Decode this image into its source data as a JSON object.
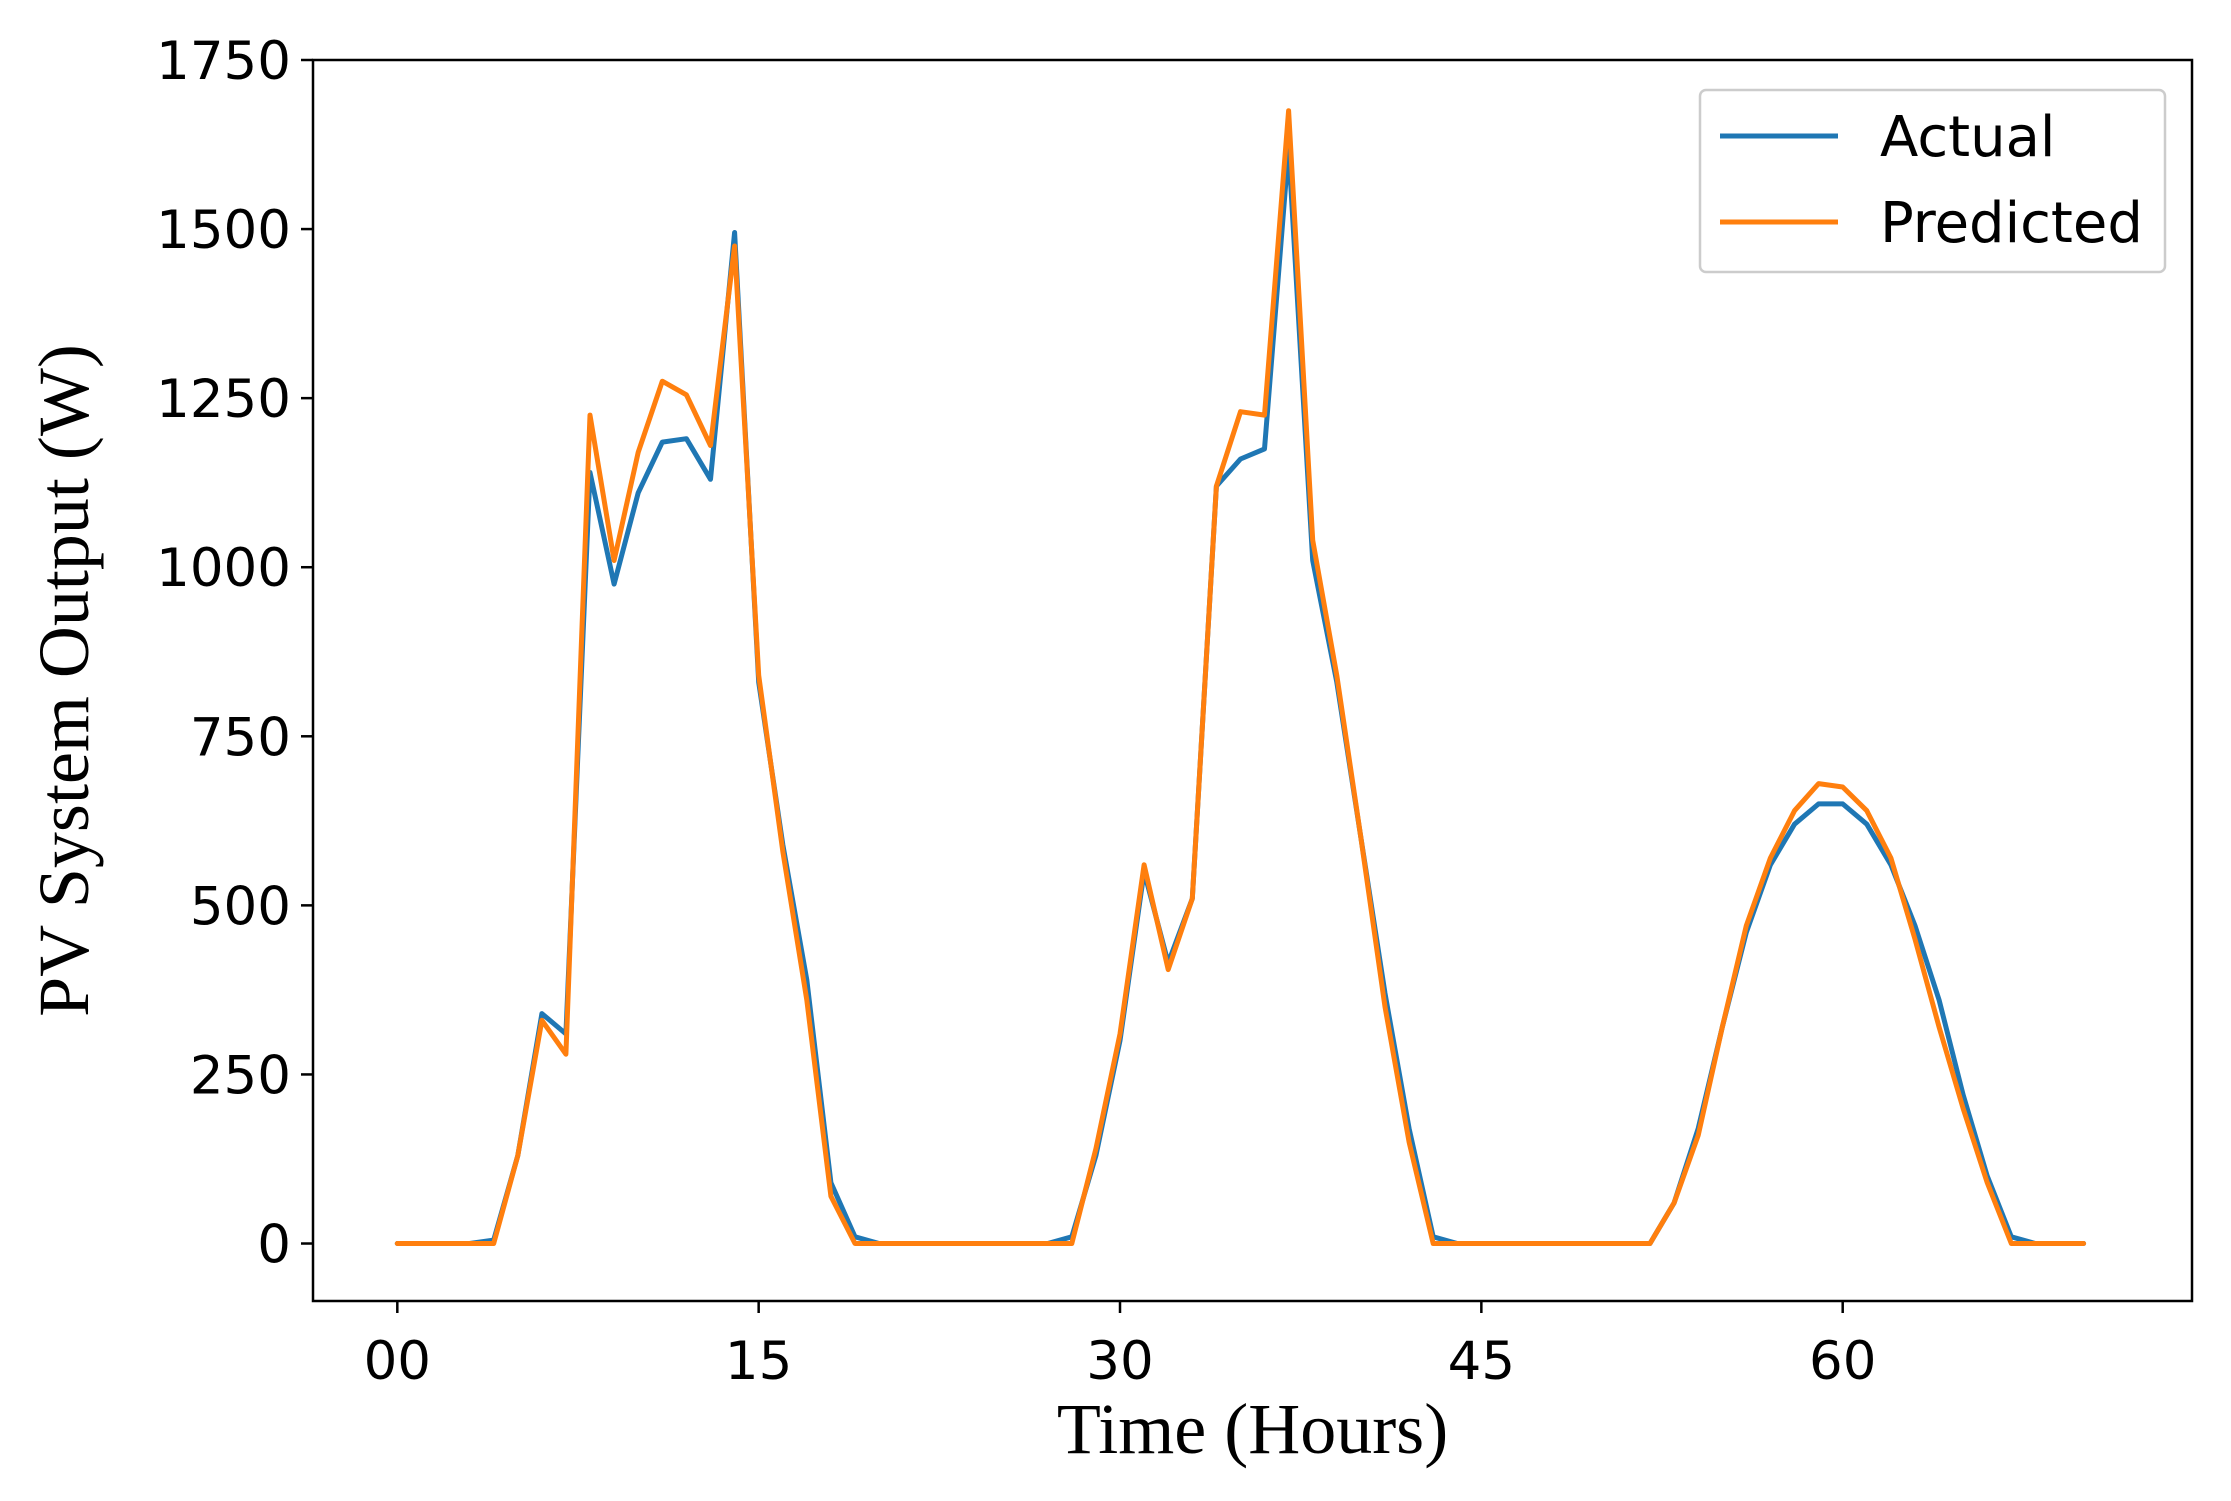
{
  "chart_data": {
    "type": "line",
    "title": "",
    "xlabel": "Time (Hours)",
    "ylabel": "PV System Output (W)",
    "xlim": [
      -3.5,
      74.5
    ],
    "ylim": [
      -85,
      1750
    ],
    "xticks": [
      0,
      15,
      30,
      45,
      60
    ],
    "xtick_labels": [
      "00",
      "15",
      "30",
      "45",
      "60"
    ],
    "yticks": [
      0,
      250,
      500,
      750,
      1000,
      1250,
      1500,
      1750
    ],
    "ytick_labels": [
      "0",
      "250",
      "500",
      "750",
      "1000",
      "1250",
      "1500",
      "1750"
    ],
    "grid": false,
    "legend_position": "top-right",
    "x": [
      0,
      1,
      2,
      3,
      4,
      5,
      6,
      7,
      8,
      9,
      10,
      11,
      12,
      13,
      14,
      15,
      16,
      17,
      18,
      19,
      20,
      21,
      22,
      23,
      24,
      25,
      26,
      27,
      28,
      29,
      30,
      31,
      32,
      33,
      34,
      35,
      36,
      37,
      38,
      39,
      40,
      41,
      42,
      43,
      44,
      45,
      46,
      47,
      48,
      49,
      50,
      51,
      52,
      53,
      54,
      55,
      56,
      57,
      58,
      59,
      60,
      61,
      62,
      63,
      64,
      65,
      66,
      67,
      68,
      69,
      70
    ],
    "series": [
      {
        "name": "Actual",
        "color": "#1f77b4",
        "values": [
          0,
          0,
          0,
          0,
          5,
          130,
          340,
          310,
          1140,
          975,
          1110,
          1185,
          1190,
          1130,
          1495,
          830,
          590,
          390,
          90,
          10,
          0,
          0,
          0,
          0,
          0,
          0,
          0,
          0,
          10,
          130,
          300,
          550,
          415,
          510,
          1120,
          1160,
          1175,
          1620,
          1010,
          830,
          600,
          370,
          170,
          10,
          0,
          0,
          0,
          0,
          0,
          0,
          0,
          0,
          0,
          60,
          170,
          320,
          460,
          560,
          620,
          650,
          650,
          620,
          560,
          470,
          360,
          220,
          100,
          10,
          0,
          0,
          0
        ]
      },
      {
        "name": "Predicted",
        "color": "#ff7f0e",
        "values": [
          0,
          0,
          0,
          0,
          0,
          130,
          330,
          280,
          1225,
          1010,
          1170,
          1275,
          1255,
          1180,
          1475,
          840,
          580,
          360,
          70,
          0,
          0,
          0,
          0,
          0,
          0,
          0,
          0,
          0,
          0,
          140,
          310,
          560,
          405,
          510,
          1120,
          1230,
          1225,
          1675,
          1040,
          840,
          600,
          350,
          150,
          0,
          0,
          0,
          0,
          0,
          0,
          0,
          0,
          0,
          0,
          60,
          160,
          320,
          470,
          570,
          640,
          680,
          675,
          640,
          570,
          450,
          320,
          200,
          90,
          0,
          0,
          0,
          0
        ]
      }
    ]
  }
}
